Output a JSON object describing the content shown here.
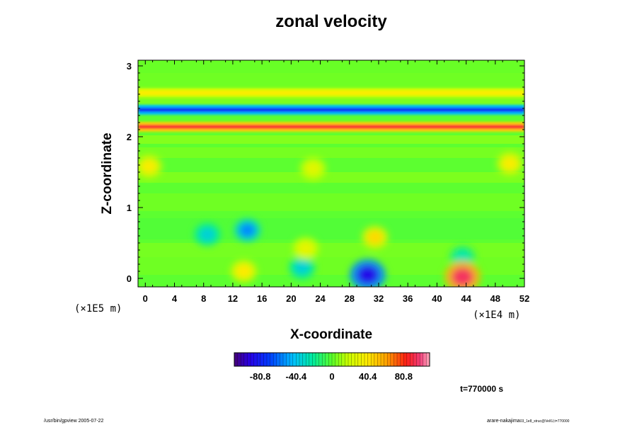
{
  "chart_data": {
    "type": "heatmap",
    "title": "zonal velocity",
    "xlabel": "X-coordinate",
    "ylabel": "Z-coordinate",
    "x_scale_label": "(×1E5 m)",
    "z_scale_label": "(×1E4 m)",
    "x_ticks": [
      "0",
      "4",
      "8",
      "12",
      "16",
      "20",
      "24",
      "28",
      "32",
      "36",
      "40",
      "44",
      "48",
      "52"
    ],
    "x_range": [
      -1,
      52
    ],
    "z_ticks": [
      "0",
      "1",
      "2",
      "3"
    ],
    "z_range": [
      -0.12,
      3.08
    ],
    "colorbar": {
      "tick_labels": [
        "-80.8",
        "-40.4",
        "0",
        "40.4",
        "80.8"
      ],
      "tick_values": [
        -80.8,
        -40.4,
        0,
        40.4,
        80.8
      ],
      "range": [
        -110,
        110
      ]
    },
    "time_label": "t=770000 s",
    "features": [
      {
        "x": 30.5,
        "z": 0.05,
        "value": -90
      },
      {
        "x": 14.0,
        "z": 0.68,
        "value": -55
      },
      {
        "x": 8.5,
        "z": 0.62,
        "value": -35
      },
      {
        "x": 21.5,
        "z": 0.15,
        "value": -35
      },
      {
        "x": 43.5,
        "z": 0.3,
        "value": -25
      },
      {
        "x": 43.5,
        "z": 0.02,
        "value": 95
      },
      {
        "x": 13.5,
        "z": 0.1,
        "value": 40
      },
      {
        "x": 31.5,
        "z": 0.58,
        "value": 45
      },
      {
        "x": 22.0,
        "z": 0.42,
        "value": 30
      },
      {
        "x": 0.5,
        "z": 1.58,
        "value": 38
      },
      {
        "x": 50.0,
        "z": 1.62,
        "value": 38
      },
      {
        "x": 23.0,
        "z": 1.55,
        "value": 28
      }
    ],
    "jets": [
      {
        "z": 2.14,
        "value": 88
      },
      {
        "z": 2.38,
        "value": -78
      },
      {
        "z": 2.62,
        "value": 38
      }
    ]
  },
  "footer": {
    "left": "/usr/bin/gpview 2005-07-22",
    "right_main": "arare-nakajima",
    "right_sub": "03_1e8_struc@Vel/U,t=770000"
  },
  "colors": {
    "background": "#ffffff",
    "field_base": "#5cff30"
  }
}
